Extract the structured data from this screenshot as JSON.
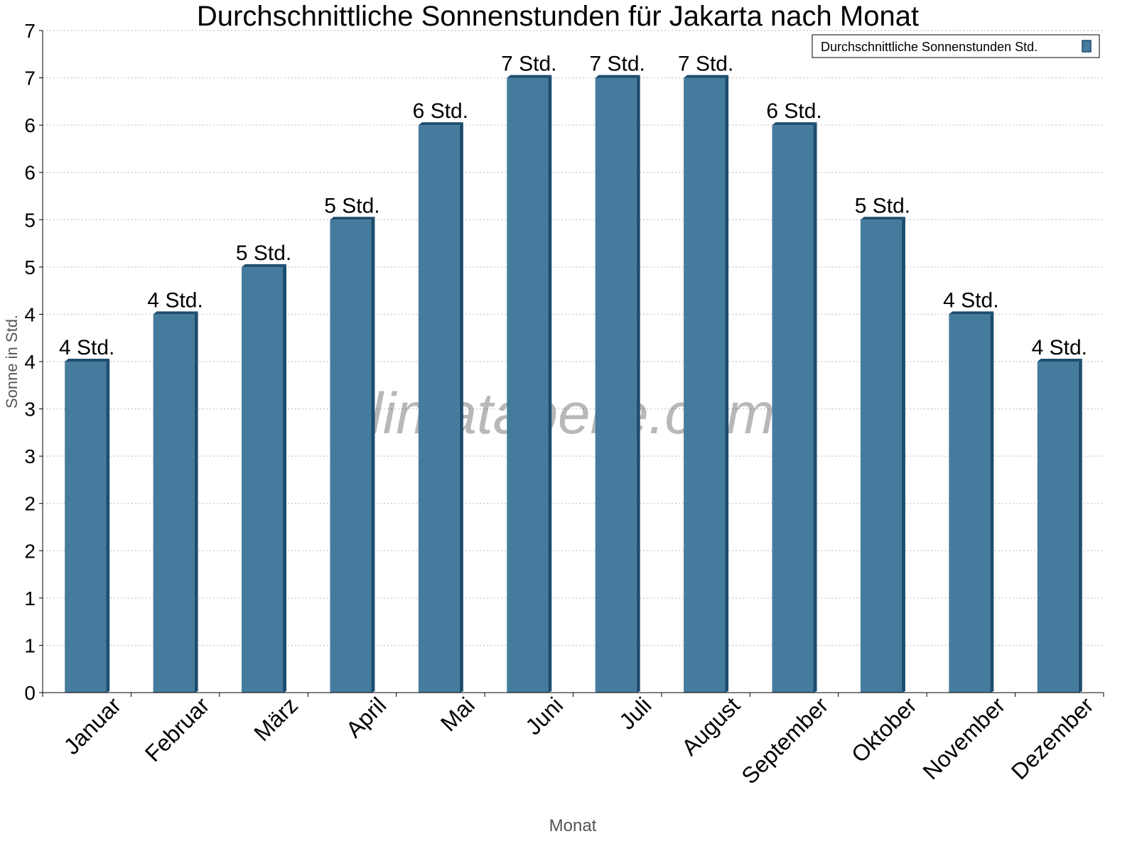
{
  "chart_data": {
    "type": "bar",
    "title": "Durchschnittliche Sonnenstunden für Jakarta nach Monat",
    "xlabel": "Monat",
    "ylabel": "Sonne in Std.",
    "ylim": [
      0,
      7
    ],
    "y_ticks": [
      0,
      0.5,
      1,
      1.5,
      2,
      2.5,
      3,
      3.5,
      4,
      4.5,
      5,
      5.5,
      6,
      6.5,
      7
    ],
    "y_tick_labels": [
      "0",
      "1",
      "1",
      "2",
      "2",
      "3",
      "3",
      "4",
      "4",
      "5",
      "5",
      "6",
      "6",
      "7",
      "7"
    ],
    "grid": true,
    "legend_position": "top-right",
    "categories": [
      "Januar",
      "Februar",
      "März",
      "April",
      "Mai",
      "Juni",
      "Juli",
      "August",
      "September",
      "Oktober",
      "November",
      "Dezember"
    ],
    "series": [
      {
        "name": "Durchschnittliche Sonnenstunden Std.",
        "values": [
          3.5,
          4.0,
          4.5,
          5.0,
          6.0,
          6.5,
          6.5,
          6.5,
          6.0,
          5.0,
          4.0,
          3.5
        ],
        "data_labels": [
          "4 Std.",
          "4 Std.",
          "5 Std.",
          "5 Std.",
          "6 Std.",
          "7 Std.",
          "7 Std.",
          "7 Std.",
          "6 Std.",
          "5 Std.",
          "4 Std.",
          "4 Std."
        ],
        "color": "#457b9d",
        "side_color": "#1d4d6e"
      }
    ],
    "watermark": "klimatabelle.com"
  }
}
